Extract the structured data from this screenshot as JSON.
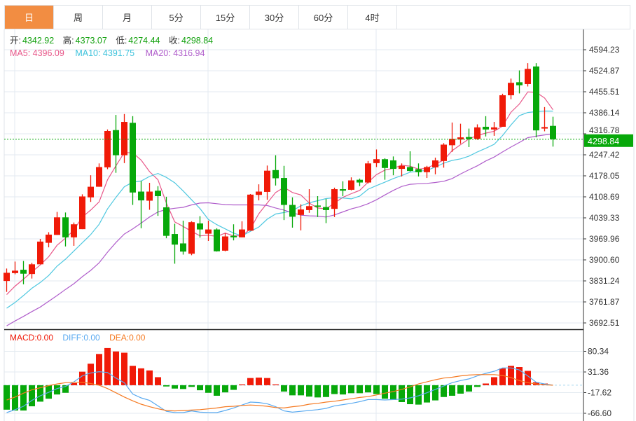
{
  "tabs": [
    {
      "label": "日",
      "active": true
    },
    {
      "label": "周"
    },
    {
      "label": "月"
    },
    {
      "label": "5分"
    },
    {
      "label": "15分"
    },
    {
      "label": "30分"
    },
    {
      "label": "60分"
    },
    {
      "label": "4时"
    }
  ],
  "ohlc_info": {
    "open_label": "开:",
    "open": "4342.92",
    "high_label": "高:",
    "high": "4373.07",
    "low_label": "低:",
    "low": "4274.44",
    "close_label": "收:",
    "close": "4298.84"
  },
  "ma_info": {
    "ma5": "MA5: 4396.09",
    "ma10": "MA10: 4391.75",
    "ma20": "MA20: 4316.94"
  },
  "macd_info": {
    "macd": "MACD:0.00",
    "diff": "DIFF:0.00",
    "dea": "DEA:0.00"
  },
  "colors": {
    "up": "#f01a08",
    "down": "#07a80a",
    "ma5": "#e8588a",
    "ma10": "#4fc8e0",
    "ma20": "#b05ecb",
    "diff": "#5aaaf0",
    "dea": "#f57a22",
    "active_tab": "#f28d42"
  },
  "chart_data": [
    {
      "type": "candlestick",
      "ylim": [
        3692.51,
        4594.23
      ],
      "y_ticks": [
        "4594.23",
        "4524.87",
        "4455.51",
        "4386.14",
        "4316.78",
        "4247.42",
        "4178.05",
        "4108.69",
        "4039.33",
        "3969.96",
        "3900.60",
        "3831.24",
        "3761.87",
        "3692.51"
      ],
      "last_price": "4298.84",
      "grid": true,
      "candles_ohlc": [
        [
          3831,
          3872,
          3795,
          3858
        ],
        [
          3857,
          3895,
          3853,
          3865
        ],
        [
          3868,
          3897,
          3820,
          3855
        ],
        [
          3854,
          3891,
          3839,
          3886
        ],
        [
          3886,
          3970,
          3886,
          3961
        ],
        [
          3957,
          3992,
          3942,
          3984
        ],
        [
          3983,
          4059,
          3983,
          4041
        ],
        [
          4041,
          4057,
          3945,
          3975
        ],
        [
          3975,
          4024,
          3947,
          4018
        ],
        [
          4002,
          4117,
          4002,
          4110
        ],
        [
          4107,
          4180,
          4092,
          4142
        ],
        [
          4142,
          4219,
          4142,
          4207
        ],
        [
          4206,
          4331,
          4200,
          4326
        ],
        [
          4329,
          4379,
          4188,
          4246
        ],
        [
          4246,
          4382,
          4220,
          4356
        ],
        [
          4353,
          4375,
          4082,
          4123
        ],
        [
          4126,
          4161,
          4005,
          4097
        ],
        [
          4096,
          4155,
          4066,
          4126
        ],
        [
          4129,
          4144,
          4046,
          4111
        ],
        [
          4074,
          4109,
          3972,
          3980
        ],
        [
          3986,
          4020,
          3888,
          3951
        ],
        [
          3955,
          4030,
          3918,
          3928
        ],
        [
          3921,
          4028,
          3916,
          4025
        ],
        [
          4021,
          4045,
          3974,
          4001
        ],
        [
          3987,
          4030,
          3963,
          4001
        ],
        [
          4001,
          4005,
          3928,
          3929
        ],
        [
          3931,
          3989,
          3929,
          3978
        ],
        [
          3980,
          4018,
          3965,
          3975
        ],
        [
          3975,
          4028,
          3975,
          4001
        ],
        [
          3997,
          4118,
          3997,
          4116
        ],
        [
          4115,
          4150,
          4097,
          4126
        ],
        [
          4125,
          4212,
          4099,
          4195
        ],
        [
          4197,
          4246,
          4146,
          4170
        ],
        [
          4171,
          4211,
          4032,
          4082
        ],
        [
          4082,
          4107,
          4007,
          4043
        ],
        [
          4049,
          4084,
          3998,
          4067
        ],
        [
          4065,
          4134,
          4056,
          4078
        ],
        [
          4080,
          4111,
          4042,
          4076
        ],
        [
          4075,
          4102,
          4022,
          4065
        ],
        [
          4069,
          4139,
          4042,
          4134
        ],
        [
          4134,
          4160,
          4111,
          4129
        ],
        [
          4132,
          4173,
          4130,
          4163
        ],
        [
          4165,
          4169,
          4144,
          4156
        ],
        [
          4156,
          4227,
          4153,
          4219
        ],
        [
          4220,
          4265,
          4207,
          4233
        ],
        [
          4233,
          4236,
          4165,
          4204
        ],
        [
          4229,
          4242,
          4180,
          4201
        ],
        [
          4201,
          4219,
          4176,
          4211
        ],
        [
          4207,
          4259,
          4192,
          4194
        ],
        [
          4200,
          4219,
          4176,
          4190
        ],
        [
          4190,
          4211,
          4171,
          4207
        ],
        [
          4206,
          4238,
          4183,
          4229
        ],
        [
          4227,
          4286,
          4205,
          4281
        ],
        [
          4279,
          4354,
          4257,
          4300
        ],
        [
          4298,
          4350,
          4284,
          4305
        ],
        [
          4306,
          4334,
          4273,
          4300
        ],
        [
          4300,
          4348,
          4297,
          4338
        ],
        [
          4340,
          4375,
          4308,
          4331
        ],
        [
          4331,
          4356,
          4310,
          4338
        ],
        [
          4340,
          4449,
          4340,
          4444
        ],
        [
          4444,
          4499,
          4431,
          4485
        ],
        [
          4487,
          4526,
          4450,
          4477
        ],
        [
          4481,
          4550,
          4473,
          4531
        ],
        [
          4539,
          4550,
          4305,
          4328
        ],
        [
          4334,
          4405,
          4325,
          4339
        ],
        [
          4342.92,
          4373.07,
          4274.44,
          4298.84
        ]
      ],
      "series": [
        {
          "name": "MA5",
          "values": [
            3786,
            3814,
            3837,
            3861,
            3884,
            3911,
            3949,
            3972,
            3999,
            4042,
            4065,
            4092,
            4165,
            4211,
            4255,
            4254,
            4230,
            4192,
            4165,
            4088,
            4026,
            4011,
            3995,
            3980,
            3982,
            3978,
            3989,
            3980,
            3980,
            4003,
            4053,
            4088,
            4123,
            4140,
            4123,
            4115,
            4088,
            4072,
            4069,
            4088,
            4107,
            4119,
            4130,
            4157,
            4182,
            4197,
            4203,
            4213,
            4210,
            4200,
            4203,
            4217,
            4230,
            4261,
            4281,
            4300,
            4311,
            4319,
            4325,
            4342,
            4388,
            4415,
            4455,
            4454,
            4435,
            4396.09
          ]
        },
        {
          "name": "MA10",
          "values": [
            3741,
            3760,
            3783,
            3807,
            3826,
            3849,
            3880,
            3903,
            3930,
            3957,
            3984,
            4018,
            4069,
            4107,
            4142,
            4157,
            4161,
            4176,
            4186,
            4173,
            4155,
            4128,
            4099,
            4070,
            4034,
            4017,
            4003,
            3989,
            3980,
            3995,
            4009,
            4035,
            4052,
            4057,
            4063,
            4079,
            4089,
            4096,
            4103,
            4106,
            4105,
            4102,
            4111,
            4134,
            4146,
            4157,
            4169,
            4179,
            4190,
            4193,
            4196,
            4207,
            4220,
            4229,
            4234,
            4243,
            4257,
            4269,
            4282,
            4311,
            4346,
            4377,
            4387,
            4390,
            4392,
            4391.75
          ]
        },
        {
          "name": "MA20",
          "values": [
            3683,
            3699,
            3714,
            3730,
            3745,
            3764,
            3783,
            3803,
            3822,
            3845,
            3866,
            3891,
            3926,
            3958,
            3986,
            4003,
            4022,
            4042,
            4059,
            4067,
            4071,
            4074,
            4082,
            4088,
            4089,
            4086,
            4083,
            4082,
            4082,
            4082,
            4082,
            4080,
            4072,
            4065,
            4056,
            4048,
            4046,
            4045,
            4042,
            4049,
            4059,
            4069,
            4076,
            4086,
            4099,
            4115,
            4130,
            4143,
            4150,
            4152,
            4153,
            4156,
            4160,
            4169,
            4184,
            4198,
            4211,
            4227,
            4240,
            4257,
            4273,
            4288,
            4304,
            4309,
            4313,
            4316.94
          ]
        }
      ]
    },
    {
      "type": "bar",
      "ylim": [
        -66.6,
        80.34
      ],
      "y_ticks": [
        "80.34",
        "31.36",
        "-17.62",
        "-66.60"
      ],
      "grid": true,
      "series": [
        {
          "name": "MACD",
          "values": [
            -58,
            -60,
            -60,
            -50,
            -39,
            -32,
            -22,
            -18,
            5,
            32,
            51,
            74,
            88,
            80,
            77,
            46,
            40,
            35,
            19,
            -3,
            -8,
            -9,
            -4,
            -12,
            -18,
            -25,
            -17,
            -11,
            2,
            17,
            18,
            17,
            2,
            -15,
            -24,
            -24,
            -27,
            -29,
            -28,
            -21,
            -22,
            -19,
            -19,
            -17,
            -21,
            -32,
            -35,
            -40,
            -45,
            -46,
            -41,
            -36,
            -28,
            -25,
            -20,
            -15,
            -4,
            4,
            19,
            40,
            46,
            43,
            34,
            7,
            4,
            0
          ]
        },
        {
          "name": "DIFF",
          "values": [
            -65,
            -58,
            -50,
            -36,
            -25,
            -17,
            -8,
            -3,
            8,
            22,
            29,
            32,
            30,
            17,
            6,
            -21,
            -30,
            -36,
            -49,
            -62,
            -65,
            -65,
            -61,
            -64,
            -65,
            -65,
            -60,
            -54,
            -47,
            -40,
            -41,
            -44,
            -51,
            -61,
            -64,
            -62,
            -60,
            -58,
            -55,
            -49,
            -46,
            -43,
            -39,
            -34,
            -34,
            -35,
            -34,
            -33,
            -30,
            -25,
            -18,
            -10,
            -2,
            6,
            11,
            15,
            22,
            28,
            33,
            41,
            41,
            36,
            22,
            7,
            3,
            0
          ]
        },
        {
          "name": "DEA",
          "values": [
            -35,
            -28,
            -19,
            -11,
            -6,
            -1,
            3,
            6,
            7,
            7,
            4,
            0,
            -8,
            -18,
            -28,
            -37,
            -45,
            -51,
            -56,
            -60,
            -61,
            -60,
            -59,
            -58,
            -56,
            -54,
            -51,
            -50,
            -48,
            -47,
            -48,
            -50,
            -53,
            -54,
            -51,
            -49,
            -45,
            -43,
            -40,
            -38,
            -35,
            -32,
            -29,
            -27,
            -23,
            -19,
            -15,
            -10,
            -4,
            3,
            8,
            13,
            17,
            19,
            22,
            24,
            25,
            25,
            25,
            23,
            18,
            11,
            6,
            3,
            1,
            0
          ]
        }
      ]
    }
  ]
}
